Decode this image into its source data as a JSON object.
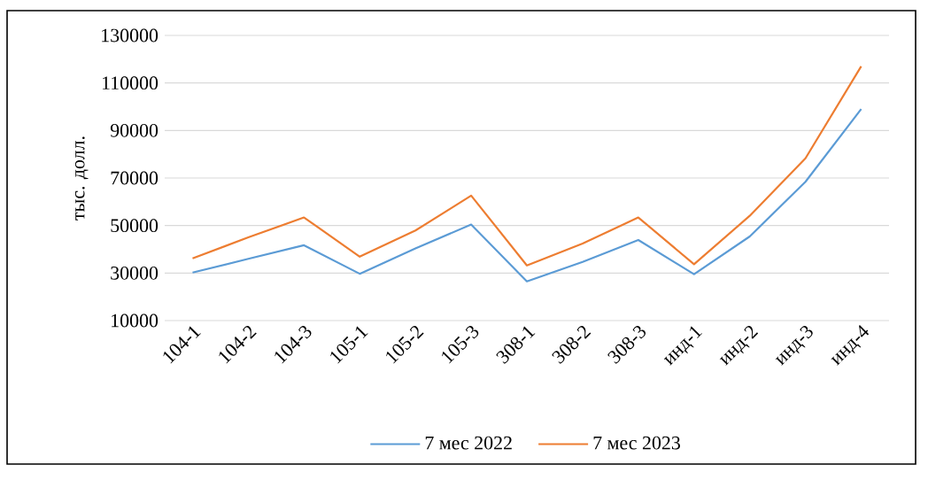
{
  "chart_data": {
    "type": "line",
    "ylabel": "тыс. долл.",
    "categories": [
      "104-1",
      "104-2",
      "104-3",
      "105-1",
      "105-2",
      "105-3",
      "308-1",
      "308-2",
      "308-3",
      "инд-1",
      "инд-2",
      "инд-3",
      "инд-4"
    ],
    "series": [
      {
        "name": "7 мес 2022",
        "color": "#5b9bd5",
        "values": [
          30200,
          36000,
          41700,
          29700,
          40400,
          50400,
          26500,
          34700,
          43900,
          29500,
          45400,
          68400,
          99000
        ]
      },
      {
        "name": "7 мес 2023",
        "color": "#ed7d31",
        "values": [
          36200,
          45000,
          53400,
          36900,
          47900,
          62600,
          33200,
          42400,
          53400,
          33700,
          54100,
          78300,
          117000
        ]
      }
    ],
    "ylim": [
      10000,
      130000
    ],
    "yticks": [
      10000,
      30000,
      50000,
      70000,
      90000,
      110000,
      130000
    ],
    "grid": "y",
    "legend": "bottom",
    "marker": "none",
    "line_style": "solid"
  }
}
